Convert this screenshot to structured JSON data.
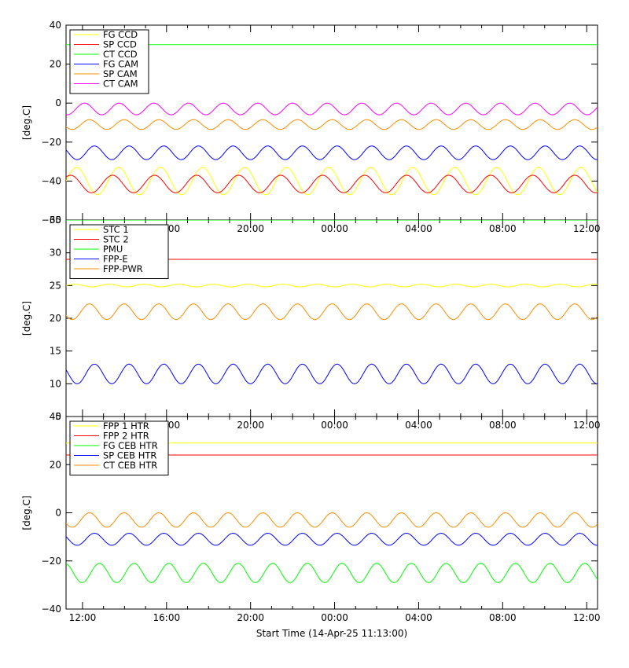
{
  "xlabel": "Start Time (14-Apr-25 11:13:00)",
  "x_ticks": [
    "12:00",
    "16:00",
    "20:00",
    "00:00",
    "04:00",
    "08:00",
    "12:00"
  ],
  "chart_data": [
    {
      "type": "line",
      "ylabel": "[deg.C]",
      "ylim": [
        -60,
        40
      ],
      "yticks": [
        "40",
        "20",
        "0",
        "−20",
        "−40",
        "−60"
      ],
      "legend_position": "top-left",
      "series": [
        {
          "name": "FG CCD",
          "color": "#ffff00",
          "description_values": {
            "base": -40,
            "amp": 7,
            "period_h": 2.0
          }
        },
        {
          "name": "SP CCD",
          "color": "#ff0000",
          "description_values": {
            "base": -41.5,
            "amp": 4.5,
            "period_h": 2.0
          }
        },
        {
          "name": "CT CCD",
          "color": "#00ff00",
          "description_values": {
            "base": 30,
            "amp": 0,
            "period_h": 0
          }
        },
        {
          "name": "FG CAM",
          "color": "#0000ff",
          "description_values": {
            "base": -25.5,
            "amp": 3.5,
            "period_h": 1.65
          }
        },
        {
          "name": "SP CAM",
          "color": "#ff8c00",
          "description_values": {
            "base": -11,
            "amp": 2.5,
            "period_h": 1.65
          }
        },
        {
          "name": "CT CAM",
          "color": "#ff00ff",
          "description_values": {
            "base": -3,
            "amp": 3,
            "period_h": 1.65
          }
        }
      ]
    },
    {
      "type": "line",
      "ylabel": "[deg.C]",
      "ylim": [
        5,
        35
      ],
      "yticks": [
        "35",
        "30",
        "25",
        "20",
        "15",
        "10",
        "5"
      ],
      "legend_position": "top-left",
      "series": [
        {
          "name": "STC 1",
          "color": "#ffff00",
          "description_values": {
            "base": 25,
            "amp": 0.2,
            "period_h": 1.65
          }
        },
        {
          "name": "STC 2",
          "color": "#ff0000",
          "description_values": {
            "base": 29,
            "amp": 0.2,
            "period_h": 0
          }
        },
        {
          "name": "PMU",
          "color": "#00ff00",
          "description_values": {
            "base": 35,
            "amp": 0,
            "period_h": 0
          }
        },
        {
          "name": "FPP-E",
          "color": "#0000ff",
          "description_values": {
            "base": 11.5,
            "amp": 1.5,
            "period_h": 1.65
          }
        },
        {
          "name": "FPP-PWR",
          "color": "#ff8c00",
          "description_values": {
            "base": 21,
            "amp": 1.2,
            "period_h": 1.65
          }
        }
      ]
    },
    {
      "type": "line",
      "ylabel": "[deg.C]",
      "ylim": [
        -40,
        40
      ],
      "yticks": [
        "40",
        "20",
        "0",
        "−20",
        "−40"
      ],
      "legend_position": "top-left",
      "series": [
        {
          "name": "FPP 1 HTR",
          "color": "#ffff00",
          "description_values": {
            "base": 29,
            "amp": 0,
            "period_h": 0
          }
        },
        {
          "name": "FPP 2 HTR",
          "color": "#ff0000",
          "description_values": {
            "base": 24,
            "amp": 0,
            "period_h": 0
          }
        },
        {
          "name": "FG CEB HTR",
          "color": "#00ff00",
          "description_values": {
            "base": -25,
            "amp": 4,
            "period_h": 1.65
          }
        },
        {
          "name": "SP CEB HTR",
          "color": "#0000ff",
          "description_values": {
            "base": -11,
            "amp": 2.5,
            "period_h": 1.65
          }
        },
        {
          "name": "CT CEB HTR",
          "color": "#ff8c00",
          "description_values": {
            "base": -3,
            "amp": 3,
            "period_h": 1.65
          }
        }
      ]
    }
  ]
}
